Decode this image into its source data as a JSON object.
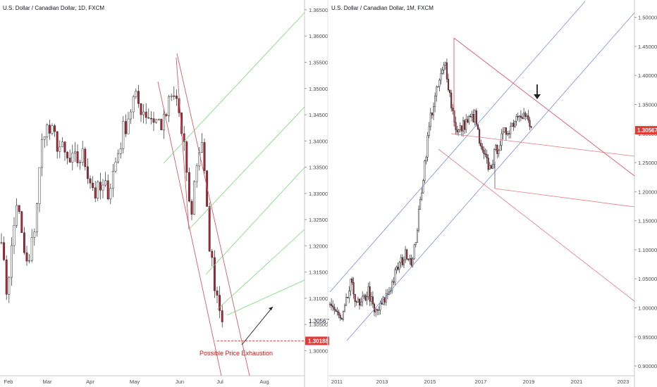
{
  "chart_data": [
    {
      "type": "candlestick",
      "title": "U.S. Dollar / Canadian Dollar, 1D, FXCM",
      "x_ticks": [
        "Feb",
        "Mar",
        "Apr",
        "May",
        "Jun",
        "Jul",
        "Aug"
      ],
      "y_ticks": [
        "1.30000",
        "1.30500",
        "1.31000",
        "1.31500",
        "1.32000",
        "1.32500",
        "1.33000",
        "1.33500",
        "1.34000",
        "1.34500",
        "1.35000",
        "1.35500",
        "1.36000",
        "1.36500"
      ],
      "ylim": [
        1.2955,
        1.3662
      ],
      "last_price": "1.30567",
      "last_price_value": 1.30567,
      "marked_level": "1.30188",
      "marked_level_value": 1.30188,
      "annotation": "Possible Price Exhaustion",
      "colors": {
        "up": "#ffffff",
        "down": "#b22234",
        "outline": "#2b2b2b",
        "tag": "#e53935",
        "pitchfork_red": "#e0576a",
        "pitchfork_green": "#5fd35f",
        "arrow": "#222222"
      }
    },
    {
      "type": "candlestick",
      "title": "U.S. Dollar / Canadian Dollar, 1M, FXCM",
      "x_ticks": [
        "2011",
        "2013",
        "2015",
        "2017",
        "2019",
        "2021",
        "2023"
      ],
      "y_ticks": [
        "0.90000",
        "0.95000",
        "1.00000",
        "1.05000",
        "1.10000",
        "1.15000",
        "1.20000",
        "1.25000",
        "1.30000",
        "1.35000",
        "1.40000",
        "1.45000",
        "1.50000"
      ],
      "ylim": [
        0.888,
        1.525
      ],
      "last_price": "1.30567",
      "last_price_value": 1.30567,
      "colors": {
        "up": "#ffffff",
        "down": "#b22234",
        "outline": "#2b2b2b",
        "tag": "#e53935",
        "pitchfork_red": "#e0576a",
        "channel_blue": "#7a90d8",
        "arrow": "#222222"
      }
    }
  ]
}
